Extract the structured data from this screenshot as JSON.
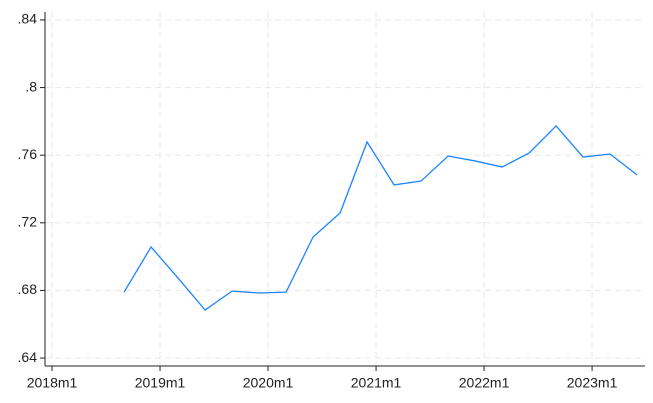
{
  "chart_data": {
    "type": "line",
    "x": [
      2018.667,
      2018.917,
      2019.167,
      2019.417,
      2019.667,
      2019.917,
      2020.167,
      2020.417,
      2020.667,
      2020.917,
      2021.167,
      2021.417,
      2021.667,
      2021.917,
      2022.167,
      2022.417,
      2022.667,
      2022.917,
      2023.167,
      2023.417
    ],
    "series": [
      {
        "color": "#1a85ff",
        "values": [
          0.679,
          0.7057,
          0.6873,
          0.6684,
          0.6796,
          0.6785,
          0.679,
          0.7116,
          0.7258,
          0.7678,
          0.7424,
          0.7447,
          0.7595,
          0.7566,
          0.753,
          0.7613,
          0.7773,
          0.7589,
          0.7607,
          0.7483
        ]
      }
    ],
    "xlim": [
      2017.935,
      2023.49
    ],
    "xticks": [
      {
        "value": 2018,
        "label": "2018m1"
      },
      {
        "value": 2019,
        "label": "2019m1"
      },
      {
        "value": 2020,
        "label": "2020m1"
      },
      {
        "value": 2021,
        "label": "2021m1"
      },
      {
        "value": 2022,
        "label": "2022m1"
      },
      {
        "value": 2023,
        "label": "2023m1"
      }
    ],
    "ylim": [
      0.6353,
      0.8447
    ],
    "yticks": [
      {
        "value": 0.64,
        "label": ".64"
      },
      {
        "value": 0.68,
        "label": ".68"
      },
      {
        "value": 0.72,
        "label": ".72"
      },
      {
        "value": 0.76,
        "label": ".76"
      },
      {
        "value": 0.8,
        "label": ".8"
      },
      {
        "value": 0.84,
        "label": ".84"
      }
    ],
    "grid": true
  }
}
